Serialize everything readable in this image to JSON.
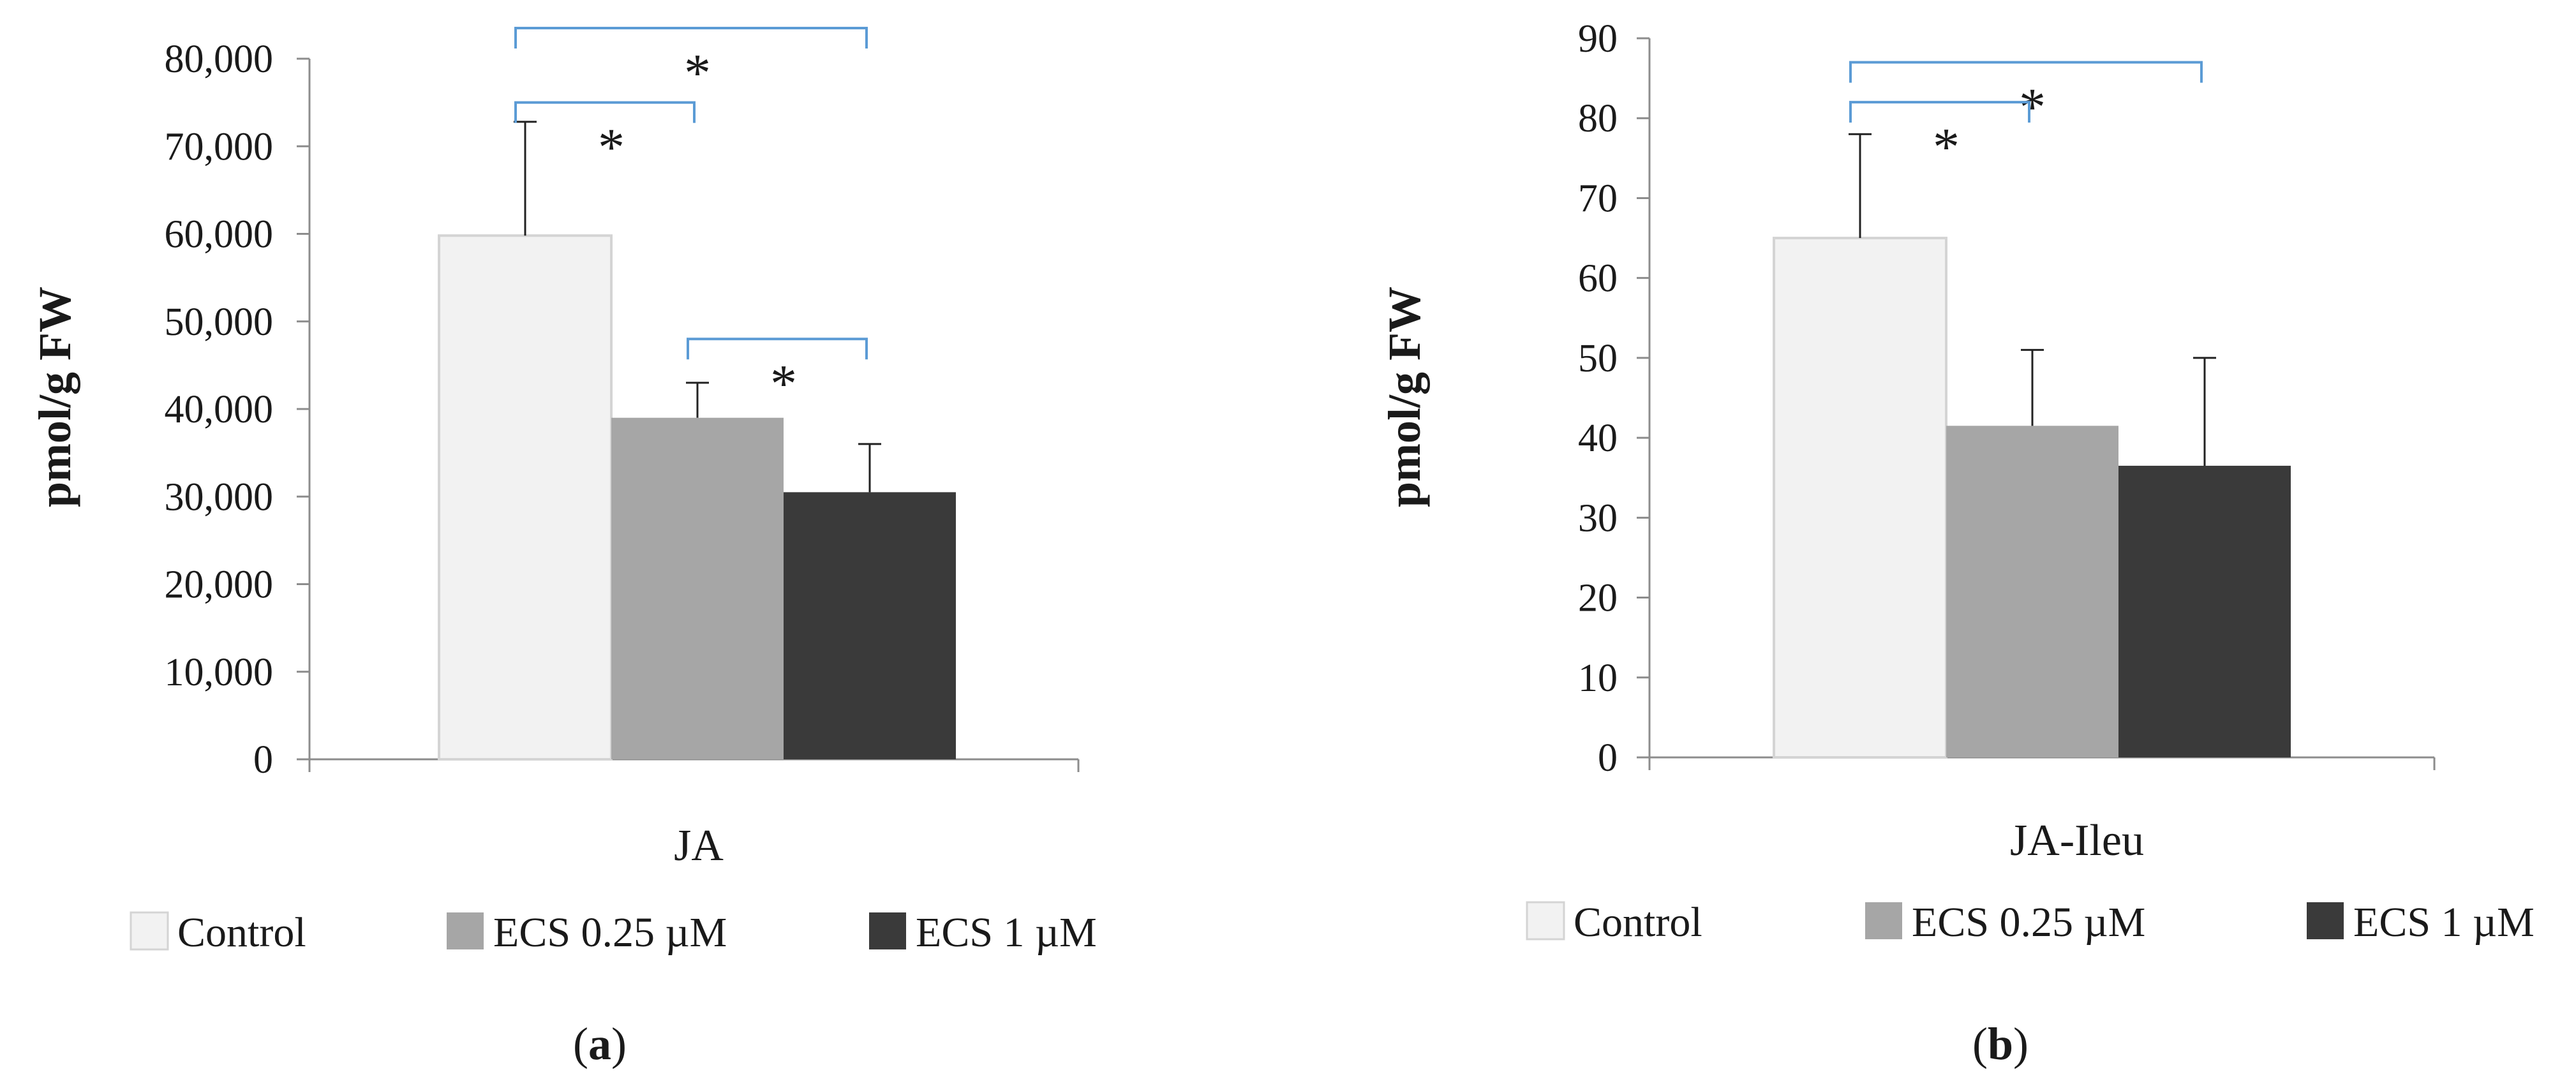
{
  "colors": {
    "control": "#f2f2f2",
    "control_edge": "#d4d4d4",
    "ecs025": "#a6a6a6",
    "ecs1": "#3a3a3a",
    "bracket": "#5b9bd5",
    "axis": "#8c8c8c"
  },
  "chart_data": [
    {
      "type": "bar",
      "panel_label_text": "a",
      "categories": [
        "JA"
      ],
      "ylabel": "pmol/g FW",
      "ylim": [
        0,
        80000
      ],
      "yticks": [
        "0",
        "10,000",
        "20,000",
        "30,000",
        "40,000",
        "50,000",
        "60,000",
        "70,000",
        "80,000"
      ],
      "ytick_values": [
        0,
        10000,
        20000,
        30000,
        40000,
        50000,
        60000,
        70000,
        80000
      ],
      "series": [
        {
          "name": "Control",
          "values": [
            59800
          ],
          "error": [
            13000
          ]
        },
        {
          "name": "ECS 0.25 µM",
          "values": [
            39000
          ],
          "error": [
            4000
          ]
        },
        {
          "name": "ECS 1 µM",
          "values": [
            30500
          ],
          "error": [
            5500
          ]
        }
      ],
      "significance": [
        {
          "from": "Control",
          "to": "ECS 1 µM",
          "label": "*",
          "level": 83500
        },
        {
          "from": "Control",
          "to": "ECS 0.25 µM",
          "label": "*",
          "level": 75000
        },
        {
          "from": "ECS 0.25 µM",
          "to": "ECS 1 µM",
          "label": "*",
          "level": 48000
        }
      ],
      "legend_position": "bottom"
    },
    {
      "type": "bar",
      "panel_label_text": "b",
      "categories": [
        "JA-Ileu"
      ],
      "ylabel": "pmol/g FW",
      "ylim": [
        0,
        90
      ],
      "yticks": [
        "0",
        "10",
        "20",
        "30",
        "40",
        "50",
        "60",
        "70",
        "80",
        "90"
      ],
      "ytick_values": [
        0,
        10,
        20,
        30,
        40,
        50,
        60,
        70,
        80,
        90
      ],
      "series": [
        {
          "name": "Control",
          "values": [
            65
          ],
          "error": [
            13
          ]
        },
        {
          "name": "ECS 0.25 µM",
          "values": [
            41.5
          ],
          "error": [
            9.5
          ]
        },
        {
          "name": "ECS 1 µM",
          "values": [
            36.5
          ],
          "error": [
            13.5
          ]
        }
      ],
      "significance": [
        {
          "from": "Control",
          "to": "ECS 1 µM",
          "label": "*",
          "level": 87
        },
        {
          "from": "Control",
          "to": "ECS 0.25 µM",
          "label": "*",
          "level": 82
        }
      ],
      "legend_position": "bottom"
    }
  ]
}
